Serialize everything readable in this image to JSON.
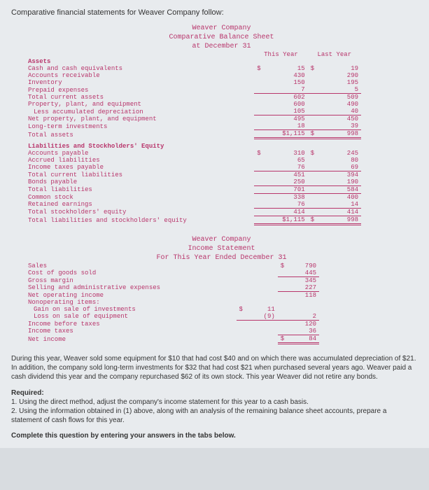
{
  "intro_text": "Comparative financial statements for Weaver Company follow:",
  "company_name": "Weaver Company",
  "bs_title": "Comparative Balance Sheet",
  "bs_date": "at December 31",
  "col_this_year": "This Year",
  "col_last_year": "Last Year",
  "bs": {
    "assets_header": "Assets",
    "rows_assets": [
      {
        "label": "Cash and cash equivalents",
        "ty_cur": "$",
        "ty": "15",
        "ly_cur": "$",
        "ly": "19"
      },
      {
        "label": "Accounts receivable",
        "ty": "430",
        "ly": "290"
      },
      {
        "label": "Inventory",
        "ty": "150",
        "ly": "195"
      },
      {
        "label": "Prepaid expenses",
        "ty": "7",
        "ly": "5",
        "underline": true
      },
      {
        "label": "Total current assets",
        "ty": "602",
        "ly": "509"
      },
      {
        "label": "Property, plant, and equipment",
        "ty": "600",
        "ly": "490"
      },
      {
        "label": "Less accumulated depreciation",
        "indent": 1,
        "ty": "105",
        "ly": "40",
        "underline": true
      },
      {
        "label": "Net property, plant, and equipment",
        "ty": "495",
        "ly": "450"
      },
      {
        "label": "Long-term investments",
        "ty": "18",
        "ly": "39",
        "underline": true
      },
      {
        "label": "Total assets",
        "ty_cur": "",
        "ty": "$1,115",
        "ly_cur": "$",
        "ly": "998",
        "dbl": true
      }
    ],
    "liab_header": "Liabilities and Stockholders' Equity",
    "rows_liab": [
      {
        "label": "Accounts payable",
        "ty_cur": "$",
        "ty": "310",
        "ly_cur": "$",
        "ly": "245"
      },
      {
        "label": "Accrued liabilities",
        "ty": "65",
        "ly": "80"
      },
      {
        "label": "Income taxes payable",
        "ty": "76",
        "ly": "69",
        "underline": true
      },
      {
        "label": "Total current liabilities",
        "ty": "451",
        "ly": "394"
      },
      {
        "label": "Bonds payable",
        "ty": "250",
        "ly": "190",
        "underline": true
      },
      {
        "label": "Total liabilities",
        "ty": "701",
        "ly": "584",
        "underline": true
      },
      {
        "label": "Common stock",
        "ty": "338",
        "ly": "400"
      },
      {
        "label": "Retained earnings",
        "ty": "76",
        "ly": "14",
        "underline": true
      },
      {
        "label": "Total stockholders' equity",
        "ty": "414",
        "ly": "414",
        "underline": true
      },
      {
        "label": "Total liabilities and stockholders' equity",
        "ty": "$1,115",
        "ly_cur": "$",
        "ly": "998",
        "dbl": true
      }
    ]
  },
  "is_title": "Income Statement",
  "is_date": "For This Year Ended December 31",
  "is": {
    "rows": [
      {
        "label": "Sales",
        "c2_cur": "$",
        "c2": "790"
      },
      {
        "label": "Cost of goods sold",
        "c2": "445",
        "c2_underline": true
      },
      {
        "label": "Gross margin",
        "c2": "345"
      },
      {
        "label": "Selling and administrative expenses",
        "c2": "227",
        "c2_underline": true
      },
      {
        "label": "Net operating income",
        "c2": "118"
      },
      {
        "label": "Nonoperating items:"
      },
      {
        "label": "Gain on sale of investments",
        "indent": 1,
        "c1_cur": "$",
        "c1": "11"
      },
      {
        "label": "Loss on sale of equipment",
        "indent": 1,
        "c1": "(9)",
        "c1_underline": true,
        "c2": "2",
        "c2_underline": true
      },
      {
        "label": "Income before taxes",
        "c2": "120"
      },
      {
        "label": "Income taxes",
        "c2": "36",
        "c2_underline": true
      },
      {
        "label": "Net income",
        "c2_cur": "$",
        "c2": "84",
        "c2_dbl": true
      }
    ]
  },
  "narrative": "During this year, Weaver sold some equipment for $10 that had cost $40 and on which there was accumulated depreciation of $21. In addition, the company sold long-term investments for $32 that had cost $21 when purchased several years ago. Weaver paid a cash dividend this year and the company repurchased $62 of its own stock. This year Weaver did not retire any bonds.",
  "required_label": "Required:",
  "required_1": "1. Using the direct method, adjust the company's income statement for this year to a cash basis.",
  "required_2": "2. Using the information obtained in (1) above, along with an analysis of the remaining balance sheet accounts, prepare a statement of cash flows for this year.",
  "complete_text": "Complete this question by entering your answers in the tabs below."
}
